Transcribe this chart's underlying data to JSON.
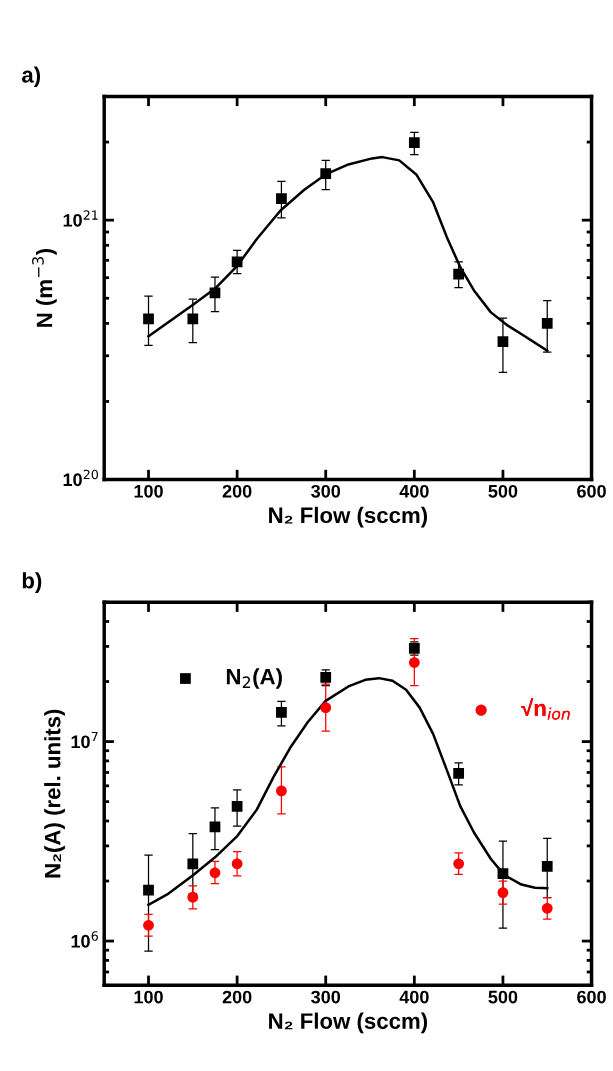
{
  "chart_data": [
    {
      "type": "scatter",
      "title": "a)",
      "xlabel": "N₂ Flow (sccm)",
      "ylabel": "N (m$^{−3}$)",
      "log": "y",
      "grid": false,
      "legend": false,
      "xlim": [
        50,
        600
      ],
      "xticks": [
        100,
        200,
        300,
        400,
        500,
        600
      ],
      "ylim": [
        1e+20,
        3e+21
      ],
      "yticks": [
        {
          "value": 1e+20,
          "label": "10$^{20}$"
        },
        {
          "value": 1e+21,
          "label": "10$^{21}$"
        }
      ],
      "x": [
        100,
        150,
        175,
        200,
        250,
        300,
        400,
        450,
        500,
        550
      ],
      "series": [
        {
          "marker": "square",
          "color": "#000000",
          "values": [
            4.16e+20,
            4.16e+20,
            5.24e+20,
            6.9e+20,
            1.21e+21,
            1.51e+21,
            1.99e+21,
            6.2e+20,
            3.4e+20,
            4e+20
          ],
          "errors": [
            [
              3.29e+20,
              5.1e+20
            ],
            [
              3.37e+20,
              4.96e+20
            ],
            [
              4.44e+20,
              6.03e+20
            ],
            [
              6.22e+20,
              7.64e+20
            ],
            [
              1.02e+21,
              1.41e+21
            ],
            [
              1.31e+21,
              1.7e+21
            ],
            [
              1.79e+21,
              2.18e+21
            ],
            [
              5.5e+20,
              6.9e+20
            ],
            [
              2.59e+20,
              4.19e+20
            ],
            [
              3.1e+20,
              4.9e+20
            ]
          ]
        },
        {
          "type": "line",
          "marker": "none",
          "line_style": "solid",
          "color": "#000000",
          "x": [
            100,
            150.2,
            175.1,
            200.4,
            222.2,
            249.0,
            275.8,
            299.9,
            325.6,
            352.4,
            363.9,
            383.0,
            402.2,
            421.3,
            436.7,
            452.0,
            467.3,
            486.4,
            505.6,
            524.7,
            550
          ],
          "values": [
            3.57e+20,
            4.72e+20,
            5.45e+20,
            6.68e+20,
            8.46e+20,
            1.09e+21,
            1.31e+21,
            1.5e+21,
            1.64e+21,
            1.73e+21,
            1.75e+21,
            1.7e+21,
            1.5e+21,
            1.17e+21,
            8.6e+20,
            6.57e+20,
            5.36e+20,
            4.41e+20,
            3.92e+20,
            3.57e+20,
            3.14e+20
          ]
        }
      ]
    },
    {
      "type": "scatter",
      "title": "b)",
      "xlabel": "N₂ Flow (sccm)",
      "ylabel": "N₂(A) (rel. units)",
      "log": "y",
      "grid": false,
      "legend": "top",
      "xlim": [
        50,
        600
      ],
      "xticks": [
        100,
        200,
        300,
        400,
        500,
        600
      ],
      "ylim": [
        600000.0,
        50000000.0
      ],
      "yticks": [
        {
          "value": 1000000.0,
          "label": "10$^{6}$"
        },
        {
          "value": 10000000.0,
          "label": "10$^{7}$"
        }
      ],
      "x": [
        100,
        150,
        175,
        200,
        250,
        300,
        400,
        450,
        500,
        550
      ],
      "series": [
        {
          "name": "N$_{2}$(A)",
          "marker": "square",
          "color": "#000000",
          "values": [
            1800000.0,
            2440000.0,
            3740000.0,
            4740000.0,
            14000000.0,
            21000000.0,
            29300000.0,
            6920000.0,
            2180000.0,
            2370000.0
          ],
          "errors": [
            [
              890000.0,
              2700000.0
            ],
            [
              1730000.0,
              3460000.0
            ],
            [
              2870000.0,
              4650000.0
            ],
            [
              3770000.0,
              5720000.0
            ],
            [
              12000000.0,
              15900000.0
            ],
            [
              19100000.0,
              22900000.0
            ],
            [
              27100000.0,
              31600000.0
            ],
            [
              6060000.0,
              7820000.0
            ],
            [
              1160000.0,
              3170000.0
            ],
            [
              1650000.0,
              3270000.0
            ]
          ]
        },
        {
          "name": "√n$_{ion}$",
          "marker": "circle",
          "color": "#ff0000",
          "values": [
            1200000.0,
            1660000.0,
            2200000.0,
            2440000.0,
            5660000.0,
            14800000.0,
            24900000.0,
            2440000.0,
            1750000.0,
            1460000.0
          ],
          "errors": [
            [
              1060000.0,
              1360000.0
            ],
            [
              1450000.0,
              1890000.0
            ],
            [
              1940000.0,
              2510000.0
            ],
            [
              2120000.0,
              2810000.0
            ],
            [
              4340000.0,
              7470000.0
            ],
            [
              11300000.0,
              19400000.0
            ],
            [
              19100000.0,
              32800000.0
            ],
            [
              2160000.0,
              2770000.0
            ],
            [
              1530000.0,
              2000000.0
            ],
            [
              1290000.0,
              1650000.0
            ]
          ]
        },
        {
          "type": "line",
          "marker": "none",
          "line_style": "solid",
          "color": "#000000",
          "x": [
            100,
            122.6,
            150.2,
            175.1,
            200.4,
            222.2,
            241.3,
            260.5,
            279.6,
            299.9,
            325.6,
            344.7,
            360.1,
            375.4,
            390.7,
            406.0,
            421.3,
            436.7,
            452.0,
            467.3,
            486.4,
            501.7,
            520.9,
            536.2,
            550
          ],
          "values": [
            1520000.0,
            1730000.0,
            2140000.0,
            2630000.0,
            3370000.0,
            4560000.0,
            6670000.0,
            9400000.0,
            12500000.0,
            16000000.0,
            18900000.0,
            20400000.0,
            20800000.0,
            20200000.0,
            18200000.0,
            14800000.0,
            10900000.0,
            7190000.0,
            4730000.0,
            3500000.0,
            2580000.0,
            2140000.0,
            1920000.0,
            1850000.0,
            1840000.0
          ]
        }
      ]
    }
  ]
}
